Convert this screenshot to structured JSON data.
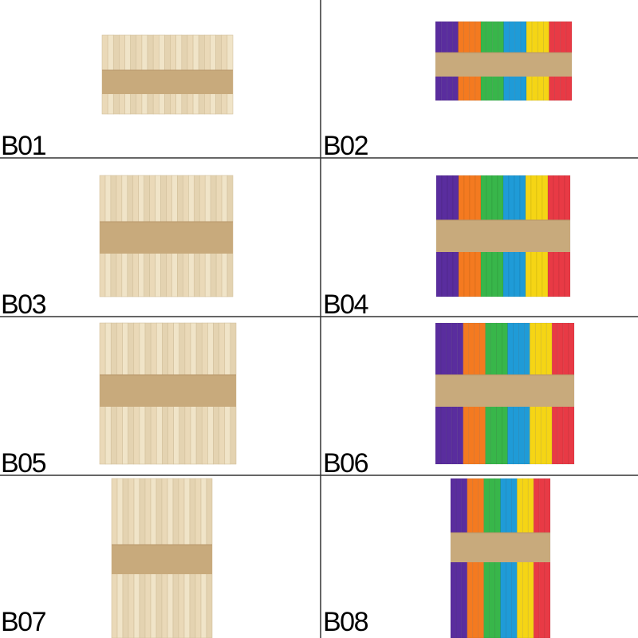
{
  "items": [
    {
      "label": "B01"
    },
    {
      "label": "B02"
    },
    {
      "label": "B03"
    },
    {
      "label": "B04"
    },
    {
      "label": "B05"
    },
    {
      "label": "B06"
    },
    {
      "label": "B07"
    },
    {
      "label": "B08"
    }
  ]
}
